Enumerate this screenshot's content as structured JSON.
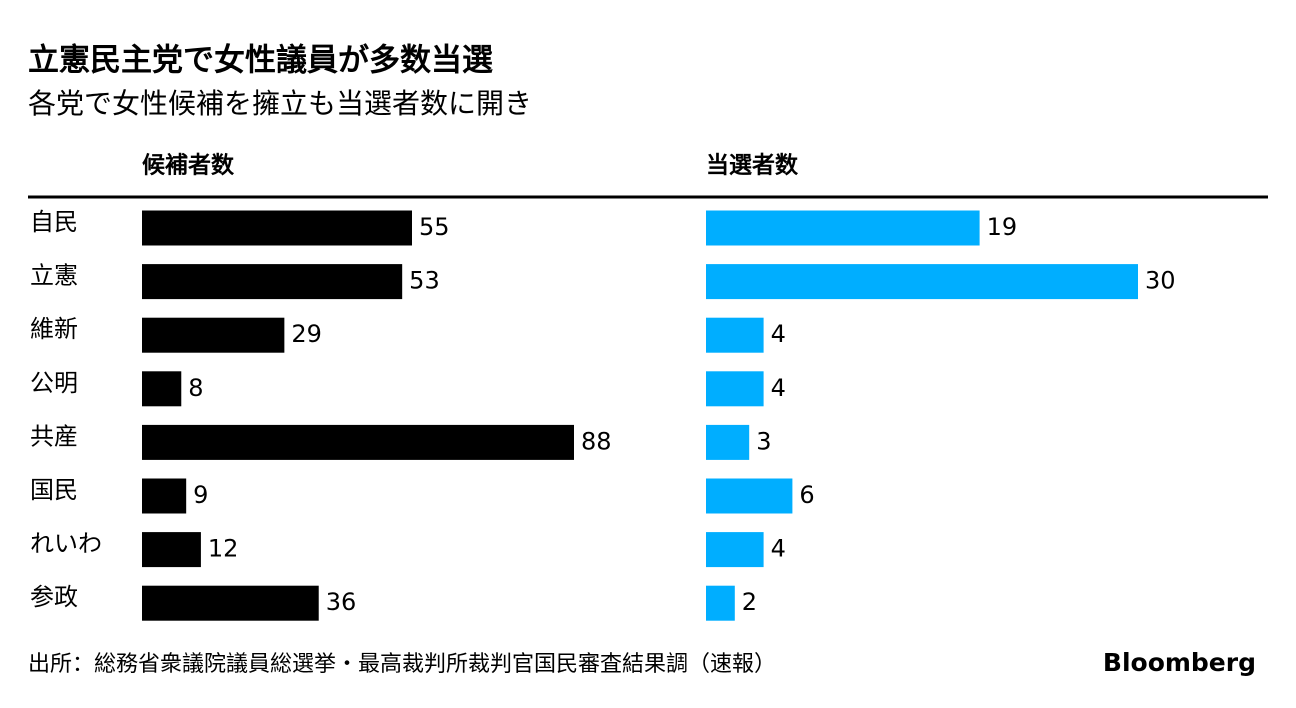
{
  "chart_data": {
    "type": "bar",
    "title": "立憲民主党で女性議員が多数当選",
    "subtitle": "各党で女性候補を擁立も当選者数に開き",
    "categories": [
      "自民",
      "立憲",
      "維新",
      "公明",
      "共産",
      "国民",
      "れいわ",
      "参政"
    ],
    "series": [
      {
        "name": "候補者数",
        "color": "#000000",
        "values": [
          55,
          53,
          29,
          8,
          88,
          9,
          12,
          36
        ]
      },
      {
        "name": "当選者数",
        "color": "#00aeff",
        "values": [
          19,
          30,
          4,
          4,
          3,
          6,
          4,
          2
        ]
      }
    ],
    "source": "出所：総務省衆議院議員総選挙・最高裁判所裁判官国民審査結果調（速報）",
    "brand": "Bloomberg"
  }
}
